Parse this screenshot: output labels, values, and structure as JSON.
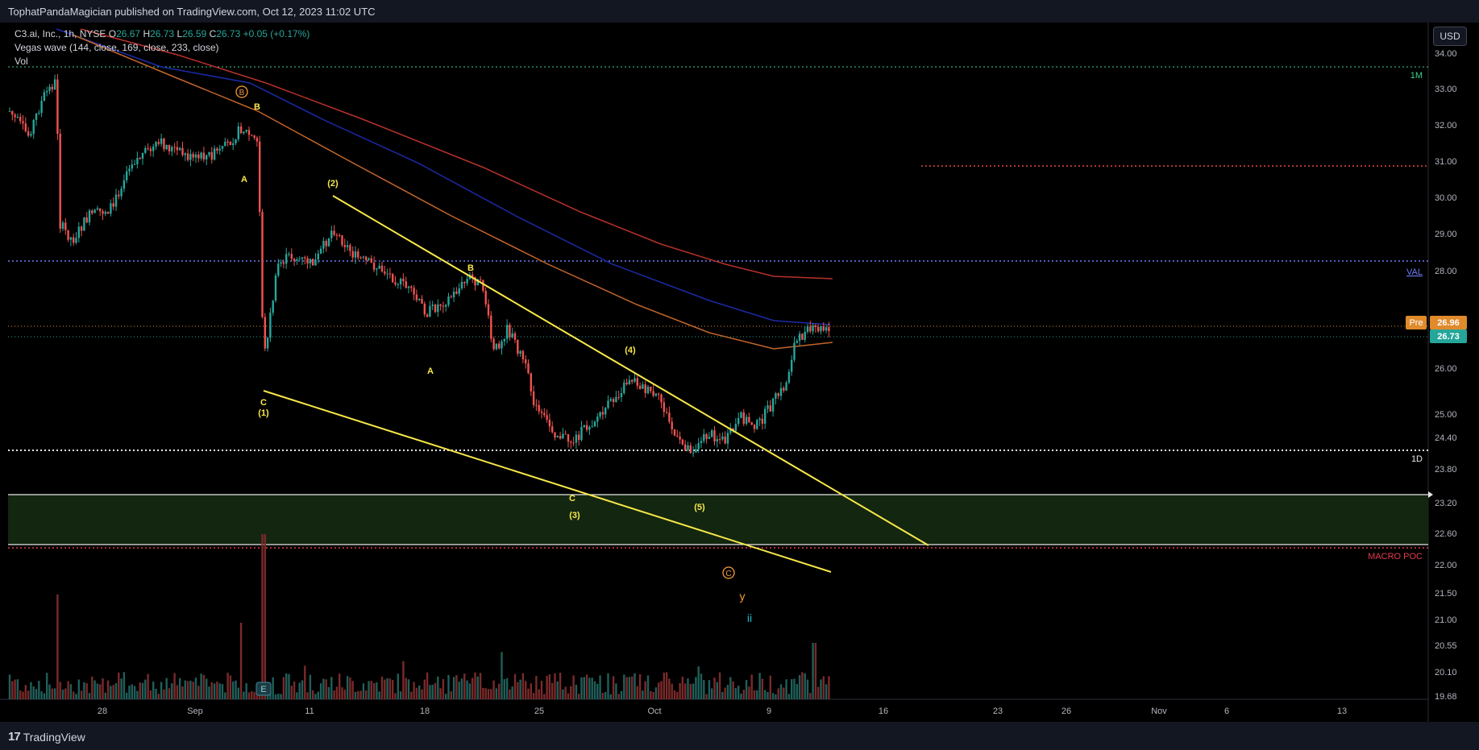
{
  "publisher_line": "TophatPandaMagician published on TradingView.com, Oct 12, 2023 11:02 UTC",
  "legend": {
    "symbol": "C3.ai, Inc., 1h, NYSE",
    "open_label": "O",
    "open": "26.67",
    "high_label": "H",
    "high": "26.73",
    "low_label": "L",
    "low": "26.59",
    "close_label": "C",
    "close": "26.73",
    "change": "+0.05 (+0.17%)",
    "indicator": "Vegas wave (144, close, 169, close, 233, close)",
    "volume": "Vol"
  },
  "currency_button": "USD",
  "price_axis": {
    "ticks": [
      "34.00",
      "33.00",
      "32.00",
      "31.00",
      "30.00",
      "29.00",
      "28.00",
      "26.00",
      "25.00",
      "24.40",
      "23.80",
      "23.20",
      "22.60",
      "22.00",
      "21.50",
      "21.00",
      "20.55",
      "20.10",
      "19.68"
    ],
    "pre_label": "Pre",
    "pre_value": "26.96",
    "last_value": "26.73"
  },
  "time_axis": {
    "ticks": [
      "28",
      "Sep",
      "11",
      "18",
      "25",
      "Oct",
      "9",
      "16",
      "23",
      "26",
      "Nov",
      "6",
      "13"
    ]
  },
  "level_labels": {
    "monthly": "1M",
    "val": "VAL",
    "daily": "1D",
    "macro_poc": "MACRO POC"
  },
  "wave_labels": {
    "B_circled": "B",
    "B_top": "B",
    "A_top": "A",
    "w2": "(2)",
    "B_mid": "B",
    "A_mid": "A",
    "C_left": "C",
    "w1": "(1)",
    "w4": "(4)",
    "C_low": "C",
    "w3": "(3)",
    "w5": "(5)",
    "C_circled": "C",
    "y": "y",
    "ii": "ii"
  },
  "earnings_marker": "E",
  "brand": "TradingView",
  "colors": {
    "bull": "#26a69a",
    "bear": "#ef5350",
    "wedge": "#f7e84a",
    "ema_fast": "#1b2ba8",
    "ema_mid": "#b7312c",
    "ema_slow": "#c4662a",
    "zone_fill": "#13260f",
    "macro_poc": "#e33b4b",
    "val_line": "#6d7cf6",
    "ii_label": "#23b5c9"
  }
}
